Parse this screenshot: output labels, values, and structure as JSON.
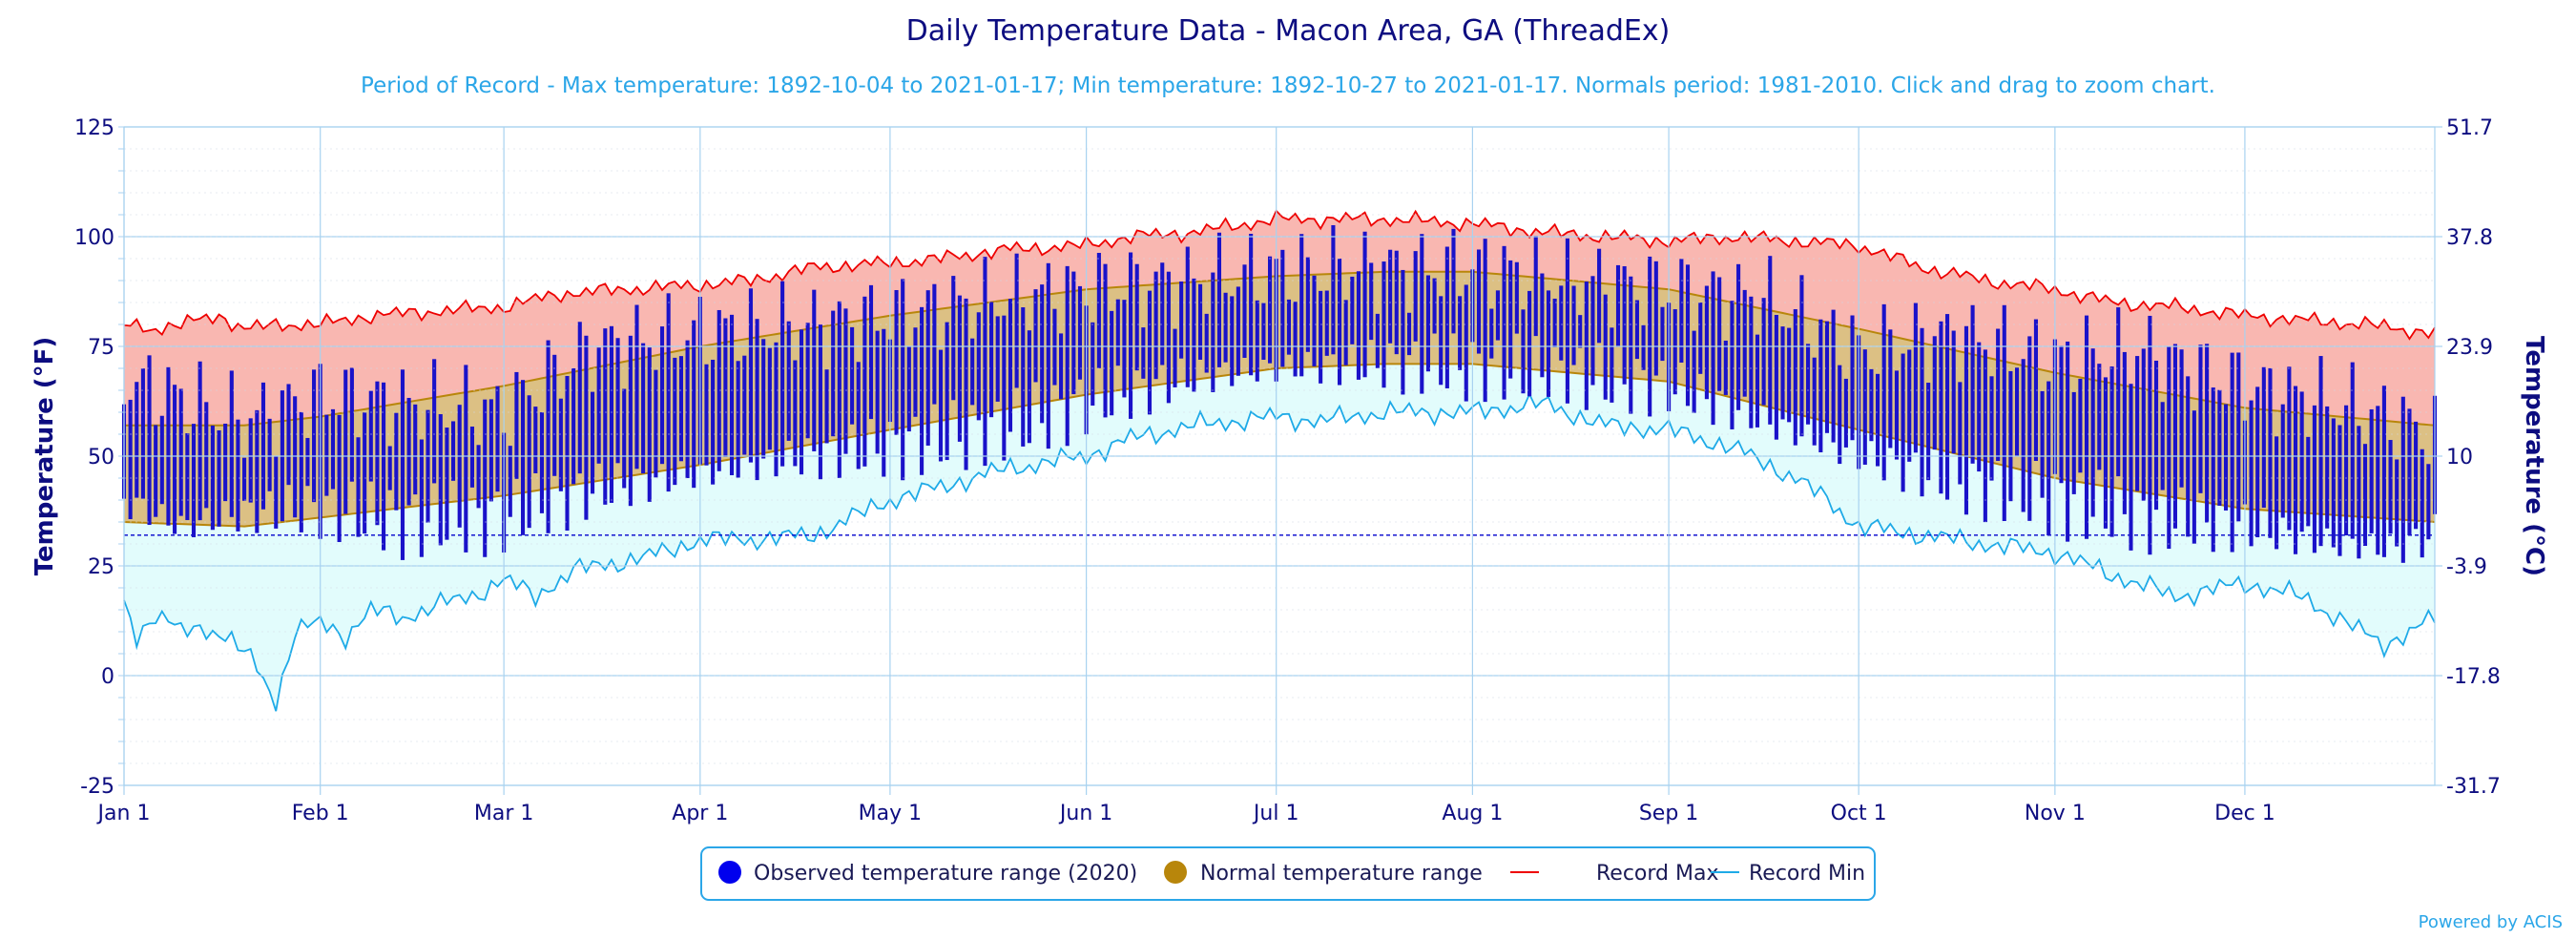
{
  "chart_data": {
    "type": "area",
    "title": "Daily Temperature Data - Macon Area, GA (ThreadEx)",
    "subtitle": "Period of Record - Max temperature: 1892-10-04 to 2021-01-17; Min temperature: 1892-10-27 to 2021-01-17. Normals period: 1981-2010. Click and drag to zoom chart.",
    "ylabel": "Temperature (°F)",
    "ylabel_right": "Temperature (°C)",
    "ylim": [
      -25,
      125
    ],
    "y_ticks": [
      "-25",
      "0",
      "25",
      "50",
      "75",
      "100",
      "125"
    ],
    "y2_ticks": [
      "-31.7",
      "-17.8",
      "-3.9",
      "10",
      "23.9",
      "37.8",
      "51.7"
    ],
    "x_ticks": [
      {
        "label": "Jan 1",
        "day": 1
      },
      {
        "label": "Feb 1",
        "day": 32
      },
      {
        "label": "Mar 1",
        "day": 61
      },
      {
        "label": "Apr 1",
        "day": 92
      },
      {
        "label": "May 1",
        "day": 122
      },
      {
        "label": "Jun 1",
        "day": 153
      },
      {
        "label": "Jul 1",
        "day": 183
      },
      {
        "label": "Aug 1",
        "day": 214
      },
      {
        "label": "Sep 1",
        "day": 245
      },
      {
        "label": "Oct 1",
        "day": 275
      },
      {
        "label": "Nov 1",
        "day": 306
      },
      {
        "label": "Dec 1",
        "day": 336
      }
    ],
    "days_in_year": 366,
    "freezing_line": 32,
    "legend_placement": "bottom-center",
    "legend": [
      {
        "label": "Observed temperature range (2020)",
        "color": "#0000ee",
        "marker": "circle"
      },
      {
        "label": "Normal temperature range",
        "color": "#b8860b",
        "marker": "circle"
      },
      {
        "label": "Record Max",
        "color": "#ee0000",
        "marker": "line"
      },
      {
        "label": "Record Min",
        "color": "#1eaae7",
        "marker": "line"
      }
    ],
    "credit": "Powered by ACIS",
    "colors": {
      "observed": "#1a12c9",
      "normal_fill": "#dcc084",
      "normal_line": "#b8860b",
      "record_max_line": "#ee0000",
      "record_max_fill": "#f9b7b1",
      "record_min_line": "#1eaae7",
      "record_min_fill": "#e2fcfc",
      "grid": "#a8d2f0",
      "freezing": "#0000cc"
    },
    "normal_range": {
      "day": [
        1,
        20,
        32,
        61,
        92,
        122,
        153,
        183,
        200,
        214,
        245,
        275,
        306,
        336,
        366
      ],
      "high": [
        57,
        57,
        59,
        66,
        75,
        82,
        88,
        91,
        92,
        92,
        88,
        79,
        69,
        61,
        57
      ],
      "low": [
        35,
        34,
        36,
        41,
        48,
        56,
        64,
        70,
        71,
        71,
        67,
        56,
        45,
        38,
        35
      ]
    },
    "record_max": {
      "day": [
        1,
        5,
        10,
        16,
        20,
        26,
        32,
        40,
        50,
        61,
        70,
        80,
        92,
        100,
        110,
        122,
        130,
        140,
        153,
        160,
        170,
        183,
        190,
        200,
        214,
        225,
        235,
        245,
        255,
        265,
        275,
        285,
        295,
        306,
        315,
        325,
        336,
        345,
        355,
        366
      ],
      "value": [
        80,
        79,
        80,
        82,
        79,
        80,
        80,
        82,
        83,
        84,
        87,
        88,
        89,
        90,
        93,
        94,
        95,
        97,
        98,
        100,
        101,
        104,
        104,
        104,
        103,
        101,
        100,
        99,
        100,
        99,
        98,
        93,
        90,
        88,
        85,
        84,
        82,
        81,
        80,
        78
      ]
    },
    "record_min": {
      "day": [
        1,
        3,
        6,
        10,
        14,
        18,
        22,
        25,
        28,
        32,
        36,
        40,
        45,
        50,
        56,
        61,
        66,
        72,
        80,
        86,
        92,
        100,
        110,
        122,
        130,
        140,
        153,
        160,
        170,
        183,
        190,
        200,
        214,
        225,
        235,
        245,
        255,
        265,
        270,
        275,
        285,
        295,
        306,
        315,
        325,
        336,
        345,
        352,
        358,
        362,
        366
      ],
      "value": [
        17,
        9,
        14,
        10,
        11,
        8,
        2,
        -6,
        10,
        12,
        9,
        15,
        13,
        16,
        18,
        22,
        18,
        24,
        26,
        28,
        31,
        31,
        32,
        40,
        43,
        47,
        50,
        54,
        57,
        59,
        58,
        60,
        60,
        62,
        57,
        56,
        52,
        45,
        40,
        34,
        32,
        30,
        28,
        23,
        18,
        21,
        18,
        12,
        7,
        10,
        13
      ]
    },
    "observed": {
      "low_anchor_day": [
        1,
        10,
        20,
        32,
        45,
        61,
        75,
        92,
        110,
        122,
        140,
        153,
        170,
        183,
        200,
        214,
        230,
        245,
        260,
        275,
        290,
        306,
        320,
        336,
        350,
        360,
        366
      ],
      "low_anchor": [
        40,
        34,
        37,
        38,
        35,
        36,
        42,
        46,
        50,
        52,
        56,
        62,
        68,
        70,
        71,
        70,
        68,
        66,
        58,
        50,
        44,
        40,
        36,
        34,
        30,
        29,
        32
      ],
      "high_anchor_day": [
        1,
        10,
        20,
        32,
        45,
        61,
        75,
        92,
        110,
        122,
        140,
        153,
        170,
        183,
        200,
        214,
        230,
        245,
        260,
        275,
        290,
        306,
        320,
        336,
        350,
        360,
        366
      ],
      "high_anchor": [
        68,
        63,
        58,
        64,
        62,
        60,
        75,
        78,
        80,
        82,
        86,
        88,
        90,
        92,
        93,
        93,
        90,
        88,
        86,
        74,
        78,
        72,
        74,
        66,
        62,
        58,
        55
      ]
    }
  }
}
